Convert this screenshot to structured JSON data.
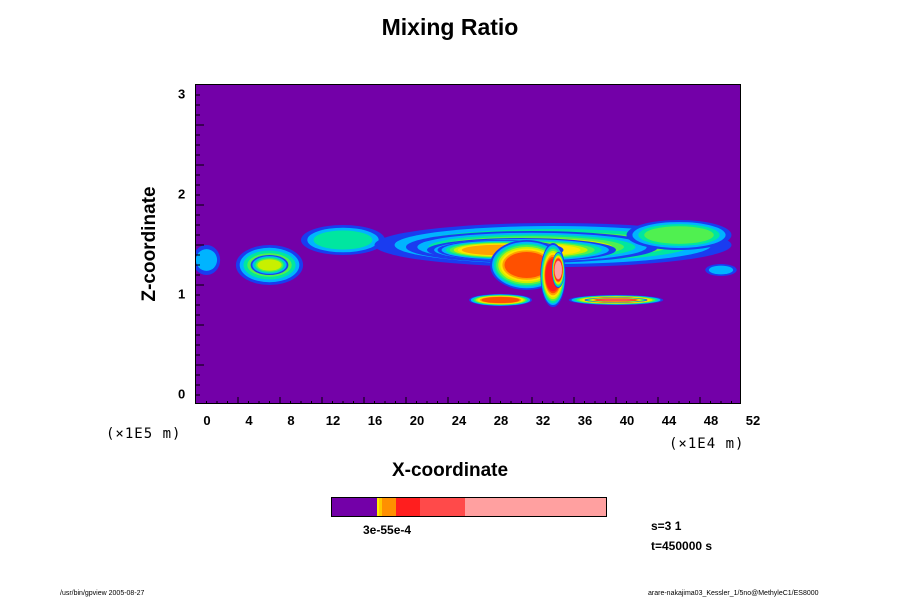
{
  "chart_data": {
    "type": "heatmap",
    "title": "Mixing Ratio",
    "xlabel": "X-coordinate",
    "ylabel": "Z-coordinate",
    "x_unit": "(×1E4 m)",
    "y_unit": "(×1E5 m)",
    "xlim": [
      0,
      52
    ],
    "ylim": [
      -0.1,
      3.1
    ],
    "x_ticks": [
      "0",
      "4",
      "8",
      "12",
      "16",
      "20",
      "24",
      "28",
      "32",
      "36",
      "40",
      "44",
      "48",
      "52"
    ],
    "y_ticks": [
      "0",
      "1",
      "2",
      "3"
    ],
    "colorscale": [
      "#7300a8",
      "#1a3cf0",
      "#00b4ff",
      "#00e6a0",
      "#50f050",
      "#c8f000",
      "#ffe600",
      "#ffa000",
      "#ff5000",
      "#ff1e1e",
      "#ff5050",
      "#ffa0a0"
    ],
    "colorbar_levels": [
      {
        "color": "#7300a8",
        "width": 45
      },
      {
        "color": "#ffee00",
        "width": 2
      },
      {
        "color": "#ffc800",
        "width": 3
      },
      {
        "color": "#ff9000",
        "width": 14
      },
      {
        "color": "#ff1e1e",
        "width": 23
      },
      {
        "color": "#ff4a4a",
        "width": 45
      },
      {
        "color": "#ffa0a0",
        "width": 140
      }
    ],
    "colorbar_label": "3e-55e-4",
    "features": [
      {
        "x": 1,
        "z": 1.35,
        "level": 2,
        "rx": 1.3,
        "rz": 0.15
      },
      {
        "x": 7,
        "z": 1.3,
        "level": 4,
        "rx": 3.2,
        "rz": 0.2
      },
      {
        "x": 7,
        "z": 1.3,
        "level": 5,
        "rx": 1.8,
        "rz": 0.1
      },
      {
        "x": 14,
        "z": 1.55,
        "level": 3,
        "rx": 4,
        "rz": 0.15
      },
      {
        "x": 34,
        "z": 1.5,
        "level": 4,
        "rx": 17,
        "rz": 0.22
      },
      {
        "x": 32,
        "z": 1.48,
        "level": 5,
        "rx": 12,
        "rz": 0.16
      },
      {
        "x": 31,
        "z": 1.45,
        "level": 6,
        "rx": 9,
        "rz": 0.12
      },
      {
        "x": 29,
        "z": 1.45,
        "level": 7,
        "rx": 6,
        "rz": 0.1
      },
      {
        "x": 31.5,
        "z": 1.3,
        "level": 8,
        "rx": 3.5,
        "rz": 0.25
      },
      {
        "x": 34,
        "z": 1.2,
        "level": 9,
        "rx": 1.2,
        "rz": 0.32
      },
      {
        "x": 34.5,
        "z": 1.25,
        "level": 11,
        "rx": 0.6,
        "rz": 0.18
      },
      {
        "x": 29,
        "z": 0.95,
        "level": 8,
        "rx": 3,
        "rz": 0.06
      },
      {
        "x": 40,
        "z": 0.95,
        "level": 8,
        "rx": 4.5,
        "rz": 0.05
      },
      {
        "x": 40,
        "z": 0.95,
        "level": 10,
        "rx": 3,
        "rz": 0.025
      },
      {
        "x": 46,
        "z": 1.6,
        "level": 4,
        "rx": 5,
        "rz": 0.15
      },
      {
        "x": 50,
        "z": 1.25,
        "level": 2,
        "rx": 1.5,
        "rz": 0.06
      }
    ]
  },
  "info": {
    "step": "s=3 1",
    "time": "t=450000 s"
  },
  "footer": {
    "left": "/usr/bin/gpview 2005-08-27",
    "right": "arare-nakajima03_Kessler_1/5no@MethyleC1/ES8000"
  }
}
